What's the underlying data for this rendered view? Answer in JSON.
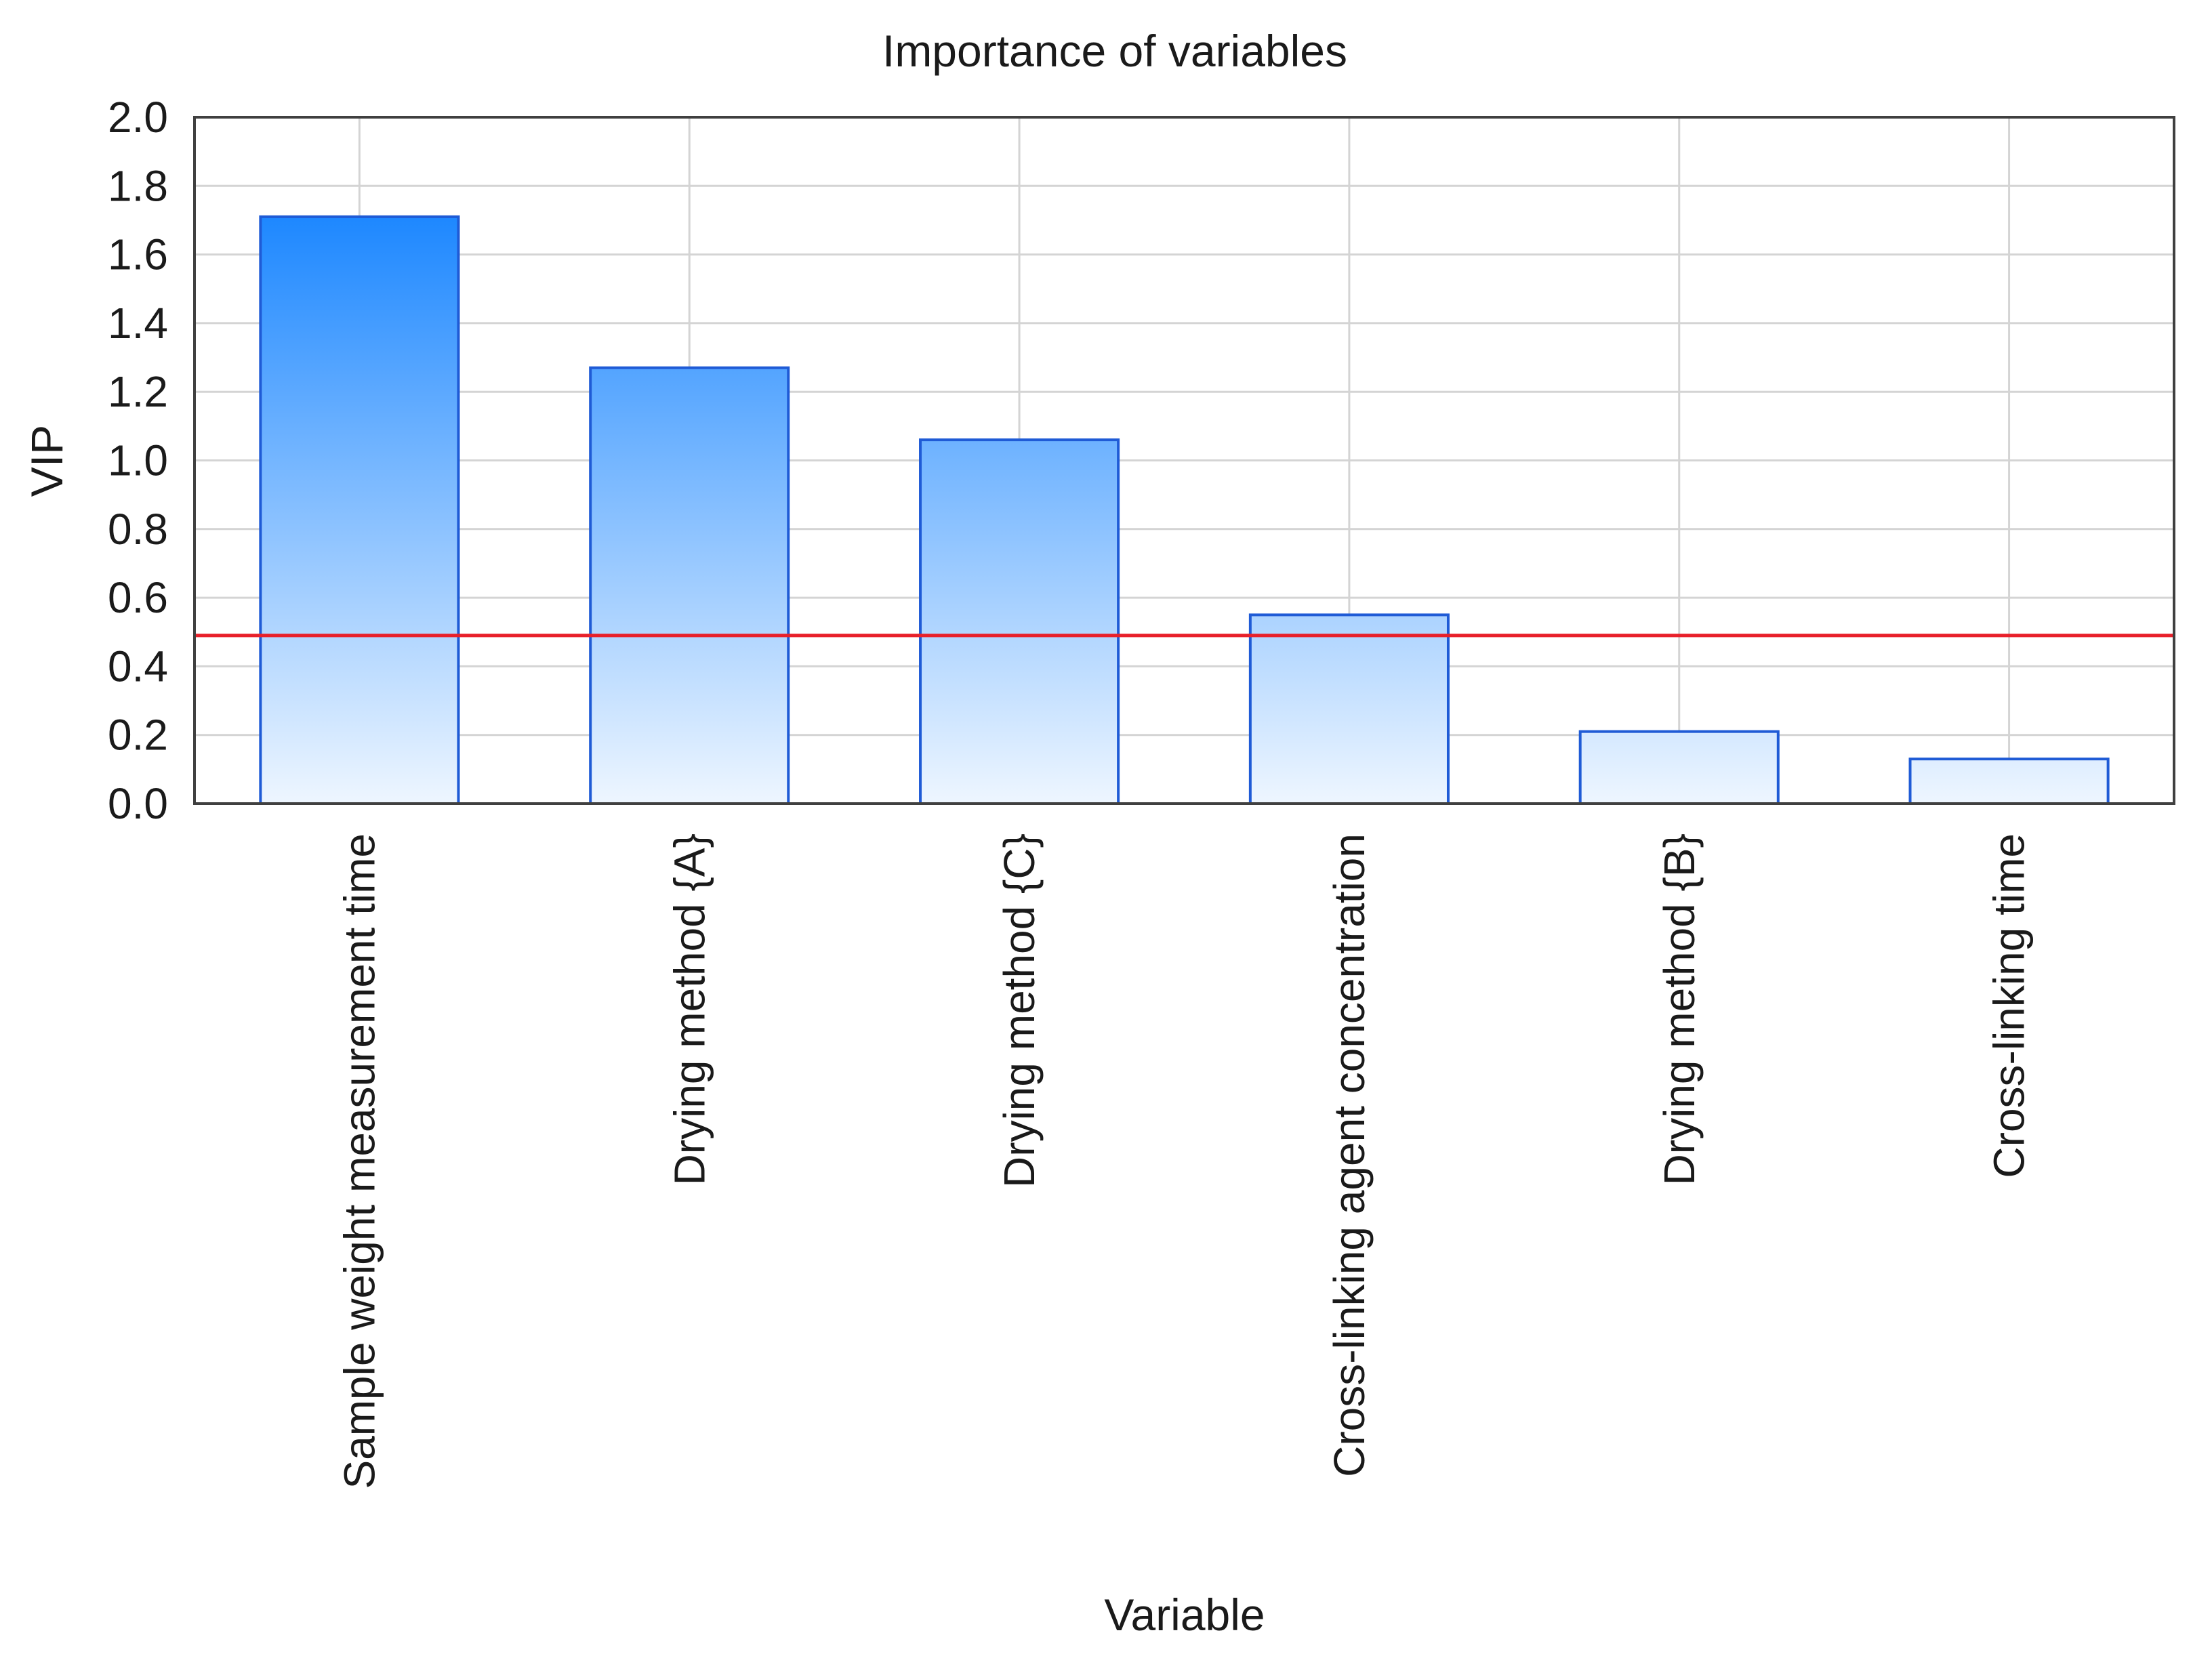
{
  "chart_data": {
    "type": "bar",
    "title": "Importance of variables",
    "xlabel": "Variable",
    "ylabel": "VIP",
    "ylim": [
      0,
      2.0
    ],
    "yticks": [
      "0.0",
      "0.2",
      "0.4",
      "0.6",
      "0.8",
      "1.0",
      "1.2",
      "1.4",
      "1.6",
      "1.8",
      "2.0"
    ],
    "grid": true,
    "categories": [
      "Sample weight measurement time",
      "Drying method {A}",
      "Drying method {C}",
      "Cross-linking agent concentration",
      "Drying method {B}",
      "Cross-linking time"
    ],
    "values": [
      1.71,
      1.27,
      1.06,
      0.55,
      0.21,
      0.13
    ],
    "reference_line": {
      "y": 0.49,
      "color": "#e8202a"
    },
    "colors": {
      "bar_top": "#1e88ff",
      "bar_bottom": "#eef6ff",
      "bar_edge": "#1f5bd6"
    }
  }
}
